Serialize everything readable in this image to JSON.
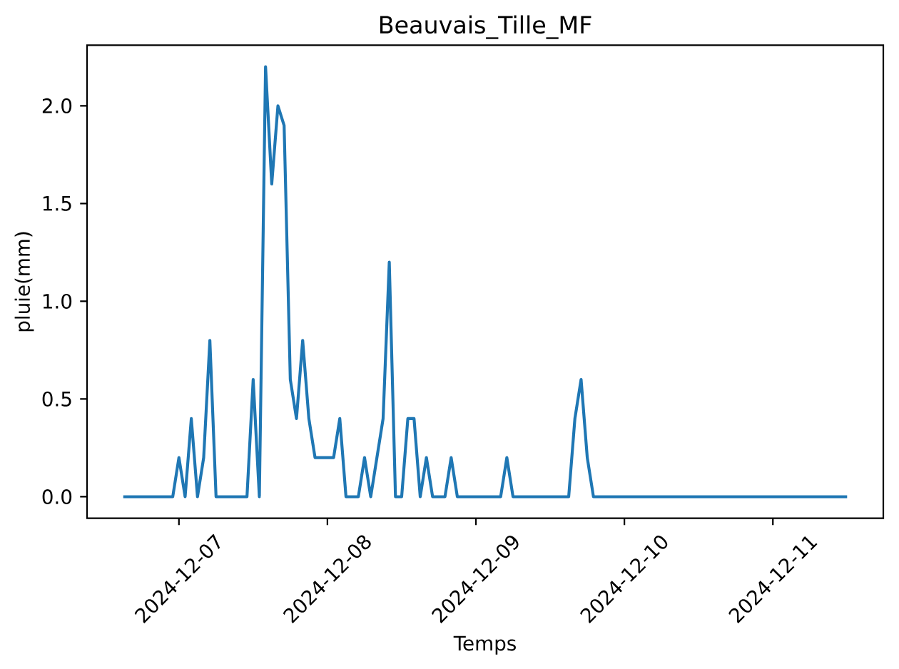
{
  "chart_data": {
    "type": "line",
    "title": "Beauvais_Tille_MF",
    "xlabel": "Temps",
    "ylabel": "pluie(mm)",
    "color": "#1f77b4",
    "x": [
      "2024-12-06T15:00",
      "2024-12-06T16:00",
      "2024-12-06T17:00",
      "2024-12-06T18:00",
      "2024-12-06T19:00",
      "2024-12-06T20:00",
      "2024-12-06T21:00",
      "2024-12-06T22:00",
      "2024-12-06T23:00",
      "2024-12-07T00:00",
      "2024-12-07T01:00",
      "2024-12-07T02:00",
      "2024-12-07T03:00",
      "2024-12-07T04:00",
      "2024-12-07T05:00",
      "2024-12-07T06:00",
      "2024-12-07T07:00",
      "2024-12-07T08:00",
      "2024-12-07T09:00",
      "2024-12-07T10:00",
      "2024-12-07T11:00",
      "2024-12-07T12:00",
      "2024-12-07T13:00",
      "2024-12-07T14:00",
      "2024-12-07T15:00",
      "2024-12-07T16:00",
      "2024-12-07T17:00",
      "2024-12-07T18:00",
      "2024-12-07T19:00",
      "2024-12-07T20:00",
      "2024-12-07T21:00",
      "2024-12-07T22:00",
      "2024-12-07T23:00",
      "2024-12-08T00:00",
      "2024-12-08T01:00",
      "2024-12-08T02:00",
      "2024-12-08T03:00",
      "2024-12-08T04:00",
      "2024-12-08T05:00",
      "2024-12-08T06:00",
      "2024-12-08T07:00",
      "2024-12-08T08:00",
      "2024-12-08T09:00",
      "2024-12-08T10:00",
      "2024-12-08T11:00",
      "2024-12-08T12:00",
      "2024-12-08T13:00",
      "2024-12-08T14:00",
      "2024-12-08T15:00",
      "2024-12-08T16:00",
      "2024-12-08T17:00",
      "2024-12-08T18:00",
      "2024-12-08T19:00",
      "2024-12-08T20:00",
      "2024-12-08T21:00",
      "2024-12-08T22:00",
      "2024-12-08T23:00",
      "2024-12-09T00:00",
      "2024-12-09T01:00",
      "2024-12-09T02:00",
      "2024-12-09T03:00",
      "2024-12-09T04:00",
      "2024-12-09T05:00",
      "2024-12-09T06:00",
      "2024-12-09T07:00",
      "2024-12-09T08:00",
      "2024-12-09T09:00",
      "2024-12-09T10:00",
      "2024-12-09T11:00",
      "2024-12-09T12:00",
      "2024-12-09T13:00",
      "2024-12-09T14:00",
      "2024-12-09T15:00",
      "2024-12-09T16:00",
      "2024-12-09T17:00",
      "2024-12-09T18:00",
      "2024-12-09T19:00",
      "2024-12-09T20:00",
      "2024-12-09T21:00",
      "2024-12-09T22:00",
      "2024-12-09T23:00",
      "2024-12-10T00:00",
      "2024-12-10T01:00",
      "2024-12-10T02:00",
      "2024-12-10T03:00",
      "2024-12-10T04:00",
      "2024-12-10T05:00",
      "2024-12-10T06:00",
      "2024-12-10T07:00",
      "2024-12-10T08:00",
      "2024-12-10T09:00",
      "2024-12-10T10:00",
      "2024-12-10T11:00",
      "2024-12-10T12:00",
      "2024-12-10T13:00",
      "2024-12-10T14:00",
      "2024-12-10T15:00",
      "2024-12-10T16:00",
      "2024-12-10T17:00",
      "2024-12-10T18:00",
      "2024-12-10T19:00",
      "2024-12-10T20:00",
      "2024-12-10T21:00",
      "2024-12-10T22:00",
      "2024-12-10T23:00",
      "2024-12-11T00:00",
      "2024-12-11T01:00",
      "2024-12-11T02:00",
      "2024-12-11T03:00",
      "2024-12-11T04:00",
      "2024-12-11T05:00",
      "2024-12-11T06:00",
      "2024-12-11T07:00",
      "2024-12-11T08:00",
      "2024-12-11T09:00",
      "2024-12-11T10:00",
      "2024-12-11T11:00",
      "2024-12-11T12:00"
    ],
    "values": [
      0,
      0,
      0,
      0,
      0,
      0,
      0,
      0,
      0,
      0.2,
      0,
      0.4,
      0,
      0.2,
      0.8,
      0,
      0,
      0,
      0,
      0,
      0,
      0.6,
      0,
      2.2,
      1.6,
      2.0,
      1.9,
      0.6,
      0.4,
      0.8,
      0.4,
      0.2,
      0.2,
      0.2,
      0.2,
      0.4,
      0,
      0,
      0,
      0.2,
      0,
      0.2,
      0.4,
      1.2,
      0,
      0,
      0.4,
      0.4,
      0,
      0.2,
      0,
      0,
      0,
      0.2,
      0,
      0,
      0,
      0,
      0,
      0,
      0,
      0,
      0.2,
      0,
      0,
      0,
      0,
      0,
      0,
      0,
      0,
      0,
      0,
      0.4,
      0.6,
      0.2,
      0,
      0,
      0,
      0,
      0,
      0,
      0,
      0,
      0,
      0,
      0,
      0,
      0,
      0,
      0,
      0,
      0,
      0,
      0,
      0,
      0,
      0,
      0,
      0,
      0,
      0,
      0,
      0,
      0,
      0,
      0,
      0,
      0,
      0,
      0,
      0,
      0,
      0,
      0,
      0,
      0,
      0
    ],
    "xlim": [
      "2024-12-06T09:09",
      "2024-12-11T17:51"
    ],
    "ylim": [
      -0.11,
      2.31
    ],
    "xticks": [
      "2024-12-07",
      "2024-12-08",
      "2024-12-09",
      "2024-12-10",
      "2024-12-11"
    ],
    "yticks": [
      {
        "value": 0,
        "label": "0.0"
      },
      {
        "value": 0.5,
        "label": "0.5"
      },
      {
        "value": 1,
        "label": "1.0"
      },
      {
        "value": 1.5,
        "label": "1.5"
      },
      {
        "value": 2,
        "label": "2.0"
      }
    ]
  }
}
